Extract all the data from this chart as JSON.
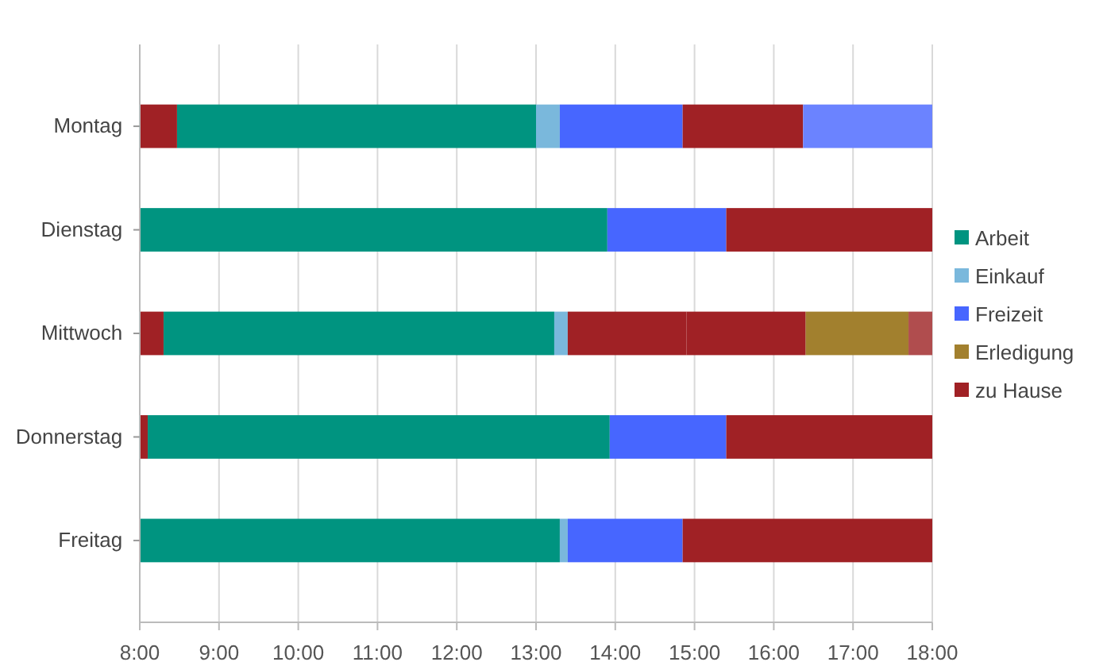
{
  "chart_data": {
    "type": "bar",
    "orientation": "horizontal",
    "categories": [
      "Montag",
      "Dienstag",
      "Mittwoch",
      "Donnerstag",
      "Freitag"
    ],
    "series": [
      {
        "name": "Arbeit",
        "color": "#009480",
        "base": [
          8.47,
          8,
          8.3,
          8.1,
          8
        ],
        "values": [
          4.53,
          5.9,
          4.93,
          5.83,
          5.3
        ]
      },
      {
        "name": "Einkauf",
        "color": "#7ab8dc",
        "base": [
          13,
          null,
          13.23,
          null,
          13.3
        ],
        "values": [
          0.3,
          null,
          0.17,
          null,
          0.1
        ]
      },
      {
        "name": "Freizeit",
        "color": "#4766ff",
        "base": [
          13.3,
          13.9,
          null,
          13.93,
          13.4
        ],
        "values": [
          1.55,
          1.5,
          null,
          1.47,
          1.45
        ]
      },
      {
        "name": "Erledigung",
        "color": "#a2802e",
        "base": [
          null,
          null,
          16.4,
          null,
          null
        ],
        "values": [
          null,
          null,
          1.3,
          null,
          null
        ]
      },
      {
        "name": "zu Hause",
        "color": "#a02125",
        "base": [
          8,
          null,
          8,
          8,
          null
        ],
        "values": [
          0.47,
          null,
          0.3,
          0.1,
          null
        ]
      },
      {
        "color": "#a02125",
        "base": [
          14.85,
          15.4,
          13.4,
          15.4,
          14.85
        ],
        "values": [
          1.52,
          2.6,
          1.5,
          2.6,
          3.15
        ]
      },
      {
        "color": "#a02125",
        "base": [
          null,
          null,
          14.9,
          null,
          null
        ],
        "values": [
          null,
          null,
          1.5,
          null,
          null
        ]
      },
      {
        "color": "#6b83ff",
        "base": [
          16.37,
          null,
          null,
          null,
          null
        ],
        "values": [
          1.63,
          null,
          null,
          null,
          null
        ]
      },
      {
        "color": "#b04d4e",
        "base": [
          null,
          null,
          17.7,
          null,
          null
        ],
        "values": [
          null,
          null,
          0.3,
          null,
          null
        ]
      }
    ],
    "xlim": [
      8,
      18
    ],
    "xticks": [
      {
        "value": 8,
        "label": "8:00"
      },
      {
        "value": 9,
        "label": "9:00"
      },
      {
        "value": 10,
        "label": "10:00"
      },
      {
        "value": 11,
        "label": "11:00"
      },
      {
        "value": 12,
        "label": "12:00"
      },
      {
        "value": 13,
        "label": "13:00"
      },
      {
        "value": 14,
        "label": "14:00"
      },
      {
        "value": 15,
        "label": "15:00"
      },
      {
        "value": 16,
        "label": "16:00"
      },
      {
        "value": 17,
        "label": "17:00"
      },
      {
        "value": 18,
        "label": "18:00"
      }
    ],
    "grid": "x",
    "legend": "right"
  }
}
